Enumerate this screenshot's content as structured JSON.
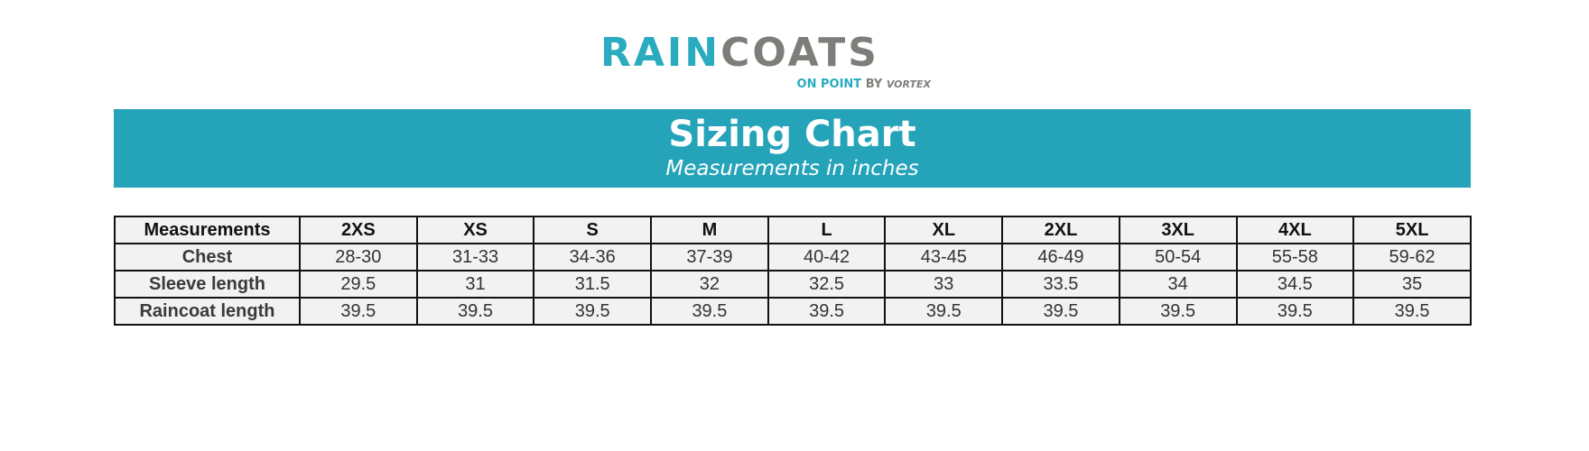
{
  "logo": {
    "brand_part1": "RAIN",
    "brand_part2": "COATS",
    "tagline": "ON POINT",
    "by": "BY",
    "maker": "VORTEX"
  },
  "banner": {
    "title": "Sizing Chart",
    "subtitle": "Measurements in inches",
    "color": "#25a3b9"
  },
  "table": {
    "headers": [
      "Measurements",
      "2XS",
      "XS",
      "S",
      "M",
      "L",
      "XL",
      "2XL",
      "3XL",
      "4XL",
      "5XL"
    ],
    "rows": [
      {
        "label": "Chest",
        "values": [
          "28-30",
          "31-33",
          "34-36",
          "37-39",
          "40-42",
          "43-45",
          "46-49",
          "50-54",
          "55-58",
          "59-62"
        ]
      },
      {
        "label": "Sleeve length",
        "values": [
          "29.5",
          "31",
          "31.5",
          "32",
          "32.5",
          "33",
          "33.5",
          "34",
          "34.5",
          "35"
        ]
      },
      {
        "label": "Raincoat length",
        "values": [
          "39.5",
          "39.5",
          "39.5",
          "39.5",
          "39.5",
          "39.5",
          "39.5",
          "39.5",
          "39.5",
          "39.5"
        ]
      }
    ]
  }
}
